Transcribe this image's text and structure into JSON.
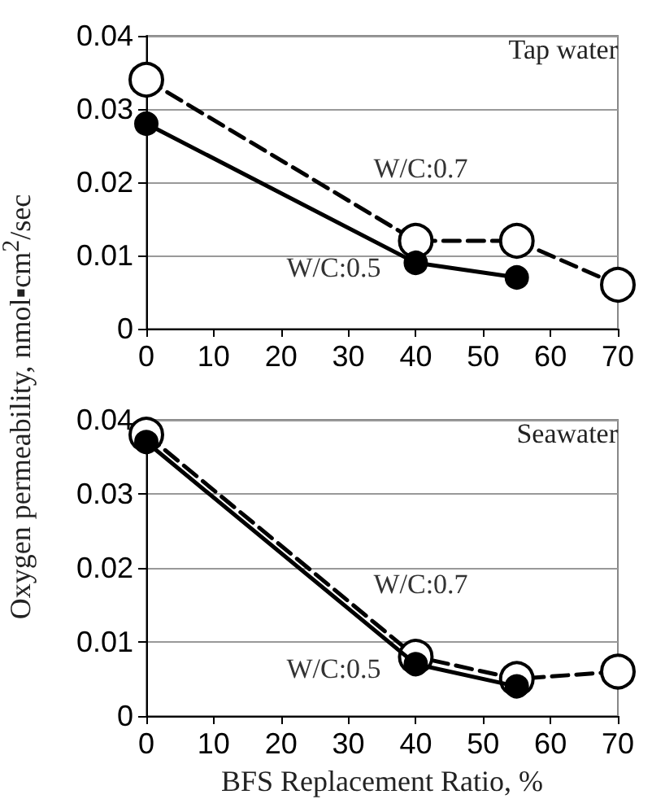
{
  "chart_data": [
    {
      "type": "line",
      "annotations": [
        "Tap water"
      ],
      "ylabel": "Oxygen permeability, nmol▪cm$^{2}$/sec",
      "x": [
        0,
        40,
        55,
        70
      ],
      "xlim": [
        0,
        70
      ],
      "xticks": [
        0,
        10,
        20,
        30,
        40,
        50,
        60,
        70
      ],
      "ylim": [
        0,
        0.04
      ],
      "yticks": [
        0,
        0.01,
        0.02,
        0.03,
        0.04
      ],
      "grid": "y",
      "legend": false,
      "marker": "circle",
      "series": [
        {
          "name": "W/C:0.5",
          "color": "#000000",
          "line_style": "solid",
          "values": [
            0.028,
            0.009,
            0.007,
            null
          ]
        },
        {
          "name": "W/C:0.7",
          "color": "#000000",
          "line_style": "dashed",
          "values": [
            0.034,
            0.012,
            0.012,
            0.006
          ]
        }
      ]
    },
    {
      "type": "line",
      "annotations": [
        "Seawater"
      ],
      "xlabel": "BFS Replacement Ratio, %",
      "x": [
        0,
        40,
        55,
        70
      ],
      "xlim": [
        0,
        70
      ],
      "xticks": [
        0,
        10,
        20,
        30,
        40,
        50,
        60,
        70
      ],
      "ylim": [
        0,
        0.04
      ],
      "yticks": [
        0,
        0.01,
        0.02,
        0.03,
        0.04
      ],
      "grid": "y",
      "legend": false,
      "marker": "circle",
      "series": [
        {
          "name": "W/C:0.5",
          "color": "#000000",
          "line_style": "solid",
          "values": [
            0.037,
            0.007,
            0.004,
            null
          ]
        },
        {
          "name": "W/C:0.7",
          "color": "#000000",
          "line_style": "dashed",
          "values": [
            0.038,
            0.008,
            0.005,
            0.006
          ]
        }
      ]
    }
  ]
}
